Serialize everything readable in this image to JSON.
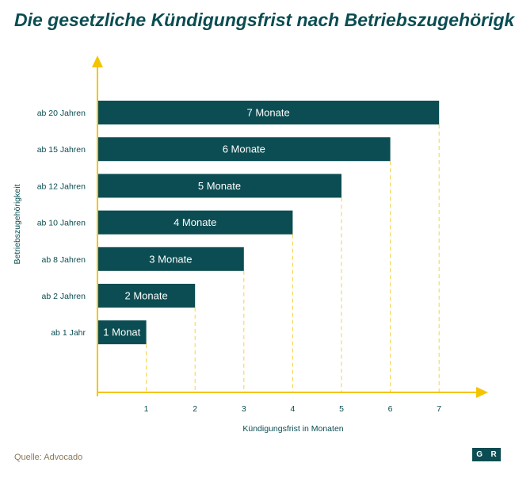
{
  "title": "Die gesetzliche Kündigungsfrist nach Betriebszugehörigkeit",
  "source": "Quelle: Advocado",
  "logo": {
    "left": "G",
    "right": "R"
  },
  "colors": {
    "bar": "#0b4d52",
    "axis": "#f5c400",
    "title": "#0b4d52",
    "bar_label": "#ffffff"
  },
  "chart_data": {
    "type": "bar",
    "orientation": "horizontal",
    "categories": [
      "ab 20 Jahren",
      "ab 15 Jahren",
      "ab 12 Jahren",
      "ab 10 Jahren",
      "ab 8 Jahren",
      "ab 2 Jahren",
      "ab 1 Jahr"
    ],
    "values": [
      7,
      6,
      5,
      4,
      3,
      2,
      1
    ],
    "data_labels": [
      "7 Monate",
      "6 Monate",
      "5 Monate",
      "4 Monate",
      "3 Monate",
      "2 Monate",
      "1 Monat"
    ],
    "xlabel": "Kündigungsfrist in Monaten",
    "ylabel": "Betriebszugehörigkeit",
    "xticks": [
      1,
      2,
      3,
      4,
      5,
      6,
      7
    ],
    "xlim": [
      0,
      8
    ],
    "grid": "dashed vertical at bar ends",
    "legend": "none"
  }
}
